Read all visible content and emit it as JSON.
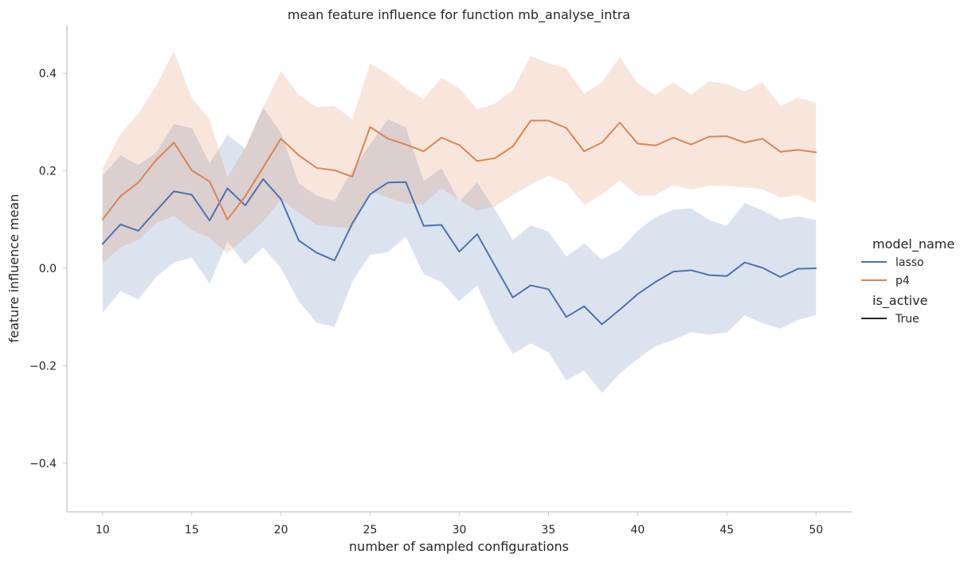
{
  "chart_data": {
    "type": "line",
    "title": "mean feature influence for function mb_analyse_intra",
    "xlabel": "number of sampled configurations",
    "ylabel": "feature influence mean",
    "xlim": [
      8,
      52
    ],
    "ylim": [
      -0.5,
      0.5
    ],
    "xticks": [
      10,
      15,
      20,
      25,
      30,
      35,
      40,
      45,
      50
    ],
    "xtick_labels": [
      "10",
      "15",
      "20",
      "25",
      "30",
      "35",
      "40",
      "45",
      "50"
    ],
    "yticks": [
      0.4,
      0.2,
      0.0,
      -0.2,
      -0.4
    ],
    "ytick_labels": [
      "0.4",
      "0.2",
      "0.0",
      "−0.2",
      "−0.4"
    ],
    "grid": false,
    "legend_placement": "right",
    "x": [
      10,
      11,
      12,
      13,
      14,
      15,
      16,
      17,
      18,
      19,
      20,
      21,
      22,
      23,
      24,
      25,
      26,
      27,
      28,
      29,
      30,
      31,
      32,
      33,
      34,
      35,
      36,
      37,
      38,
      39,
      40,
      41,
      42,
      43,
      44,
      45,
      46,
      47,
      48,
      49,
      50
    ],
    "series": [
      {
        "name": "lasso",
        "color": "#4c72b0",
        "values": [
          0.05,
          0.09,
          0.077,
          0.118,
          0.158,
          0.151,
          0.098,
          0.164,
          0.129,
          0.183,
          0.142,
          0.057,
          0.032,
          0.016,
          0.092,
          0.152,
          0.176,
          0.177,
          0.087,
          0.089,
          0.034,
          0.07,
          0.005,
          -0.06,
          -0.035,
          -0.043,
          -0.1,
          -0.078,
          -0.115,
          -0.085,
          -0.053,
          -0.028,
          -0.007,
          -0.004,
          -0.014,
          -0.016,
          0.012,
          0.001,
          -0.018,
          -0.001,
          0.0
        ],
        "lower": [
          -0.092,
          -0.047,
          -0.064,
          -0.018,
          0.012,
          0.022,
          -0.032,
          0.055,
          0.008,
          0.043,
          0.0,
          -0.068,
          -0.112,
          -0.12,
          -0.028,
          0.028,
          0.033,
          0.065,
          -0.012,
          -0.028,
          -0.068,
          -0.035,
          -0.115,
          -0.176,
          -0.154,
          -0.172,
          -0.23,
          -0.21,
          -0.256,
          -0.216,
          -0.186,
          -0.16,
          -0.147,
          -0.131,
          -0.136,
          -0.132,
          -0.097,
          -0.113,
          -0.124,
          -0.106,
          -0.096
        ],
        "upper": [
          0.19,
          0.232,
          0.212,
          0.237,
          0.296,
          0.288,
          0.215,
          0.274,
          0.246,
          0.33,
          0.278,
          0.174,
          0.149,
          0.138,
          0.201,
          0.254,
          0.306,
          0.289,
          0.179,
          0.205,
          0.137,
          0.176,
          0.121,
          0.058,
          0.088,
          0.075,
          0.024,
          0.051,
          0.018,
          0.038,
          0.077,
          0.105,
          0.12,
          0.123,
          0.099,
          0.087,
          0.134,
          0.119,
          0.1,
          0.106,
          0.099
        ]
      },
      {
        "name": "p4",
        "color": "#dd8452",
        "values": [
          0.1,
          0.148,
          0.176,
          0.222,
          0.258,
          0.201,
          0.178,
          0.1,
          0.148,
          0.207,
          0.266,
          0.232,
          0.206,
          0.201,
          0.188,
          0.29,
          0.266,
          0.254,
          0.24,
          0.268,
          0.253,
          0.22,
          0.226,
          0.25,
          0.303,
          0.303,
          0.288,
          0.24,
          0.258,
          0.299,
          0.256,
          0.252,
          0.268,
          0.254,
          0.27,
          0.271,
          0.258,
          0.266,
          0.239,
          0.243,
          0.238
        ],
        "lower": [
          0.01,
          0.043,
          0.058,
          0.093,
          0.108,
          0.078,
          0.063,
          0.03,
          0.063,
          0.095,
          0.142,
          0.114,
          0.089,
          0.085,
          0.082,
          0.158,
          0.145,
          0.133,
          0.131,
          0.164,
          0.14,
          0.118,
          0.127,
          0.15,
          0.172,
          0.19,
          0.175,
          0.13,
          0.152,
          0.18,
          0.149,
          0.15,
          0.171,
          0.161,
          0.17,
          0.169,
          0.166,
          0.162,
          0.145,
          0.15,
          0.134
        ],
        "upper": [
          0.205,
          0.275,
          0.317,
          0.375,
          0.445,
          0.35,
          0.305,
          0.186,
          0.248,
          0.33,
          0.405,
          0.356,
          0.331,
          0.333,
          0.306,
          0.421,
          0.398,
          0.37,
          0.347,
          0.391,
          0.369,
          0.326,
          0.338,
          0.366,
          0.436,
          0.421,
          0.41,
          0.358,
          0.382,
          0.434,
          0.38,
          0.356,
          0.382,
          0.356,
          0.384,
          0.378,
          0.363,
          0.382,
          0.333,
          0.35,
          0.34
        ]
      }
    ],
    "legend": {
      "title": "model_name",
      "entries": [
        {
          "label": "lasso",
          "color": "#4c72b0"
        },
        {
          "label": "p4",
          "color": "#dd8452"
        }
      ],
      "style_title": "is_active",
      "style_entries": [
        {
          "label": "True",
          "color": "#262626"
        }
      ]
    },
    "axis_color": "#cccccc"
  }
}
